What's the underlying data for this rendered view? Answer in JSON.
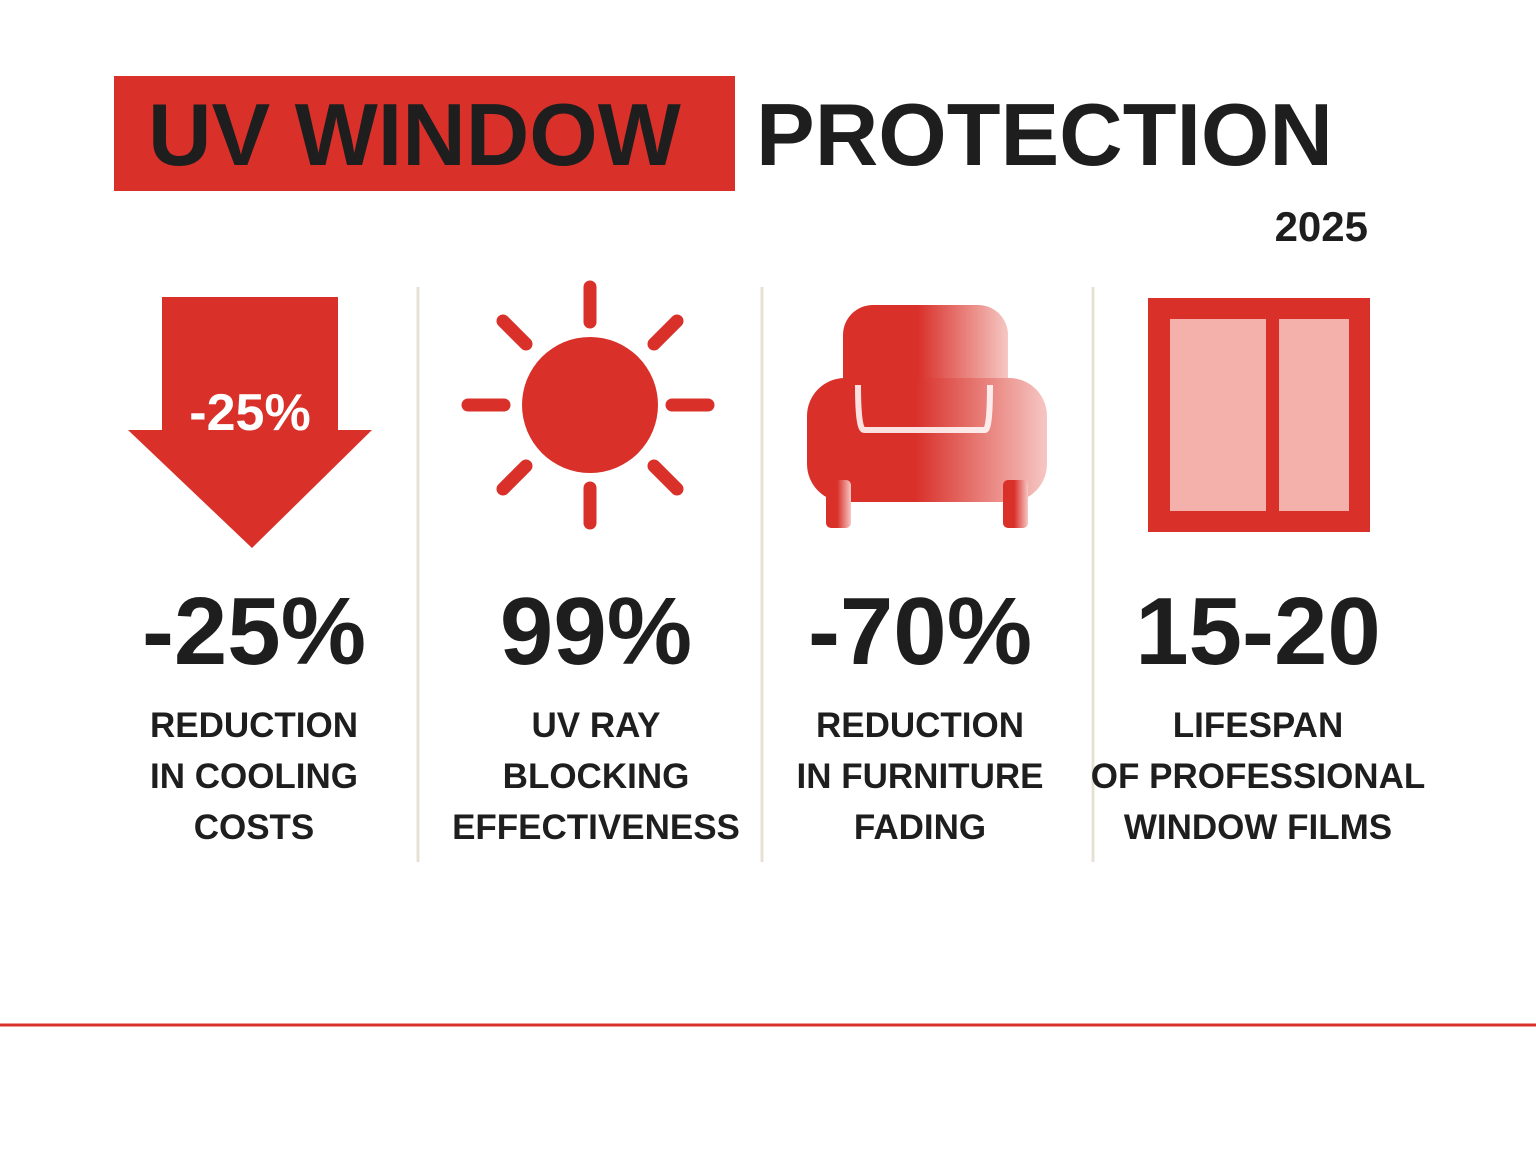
{
  "header": {
    "title_highlight": "UV WINDOW",
    "title_rest": "PROTECTION",
    "year": "2025"
  },
  "items": [
    {
      "icon_label": "-25%",
      "stat": "-25%",
      "caption": [
        "REDUCTION",
        "IN COOLING",
        "COSTS"
      ]
    },
    {
      "stat": "99%",
      "caption": [
        "UV RAY",
        "BLOCKING",
        "EFFECTIVENESS"
      ]
    },
    {
      "stat": "-70%",
      "caption": [
        "REDUCTION",
        "IN FURNITURE",
        "FADING"
      ]
    },
    {
      "stat": "15-20",
      "caption": [
        "LIFESPAN",
        "OF PROFESSIONAL",
        "WINDOW FILMS"
      ]
    }
  ]
}
